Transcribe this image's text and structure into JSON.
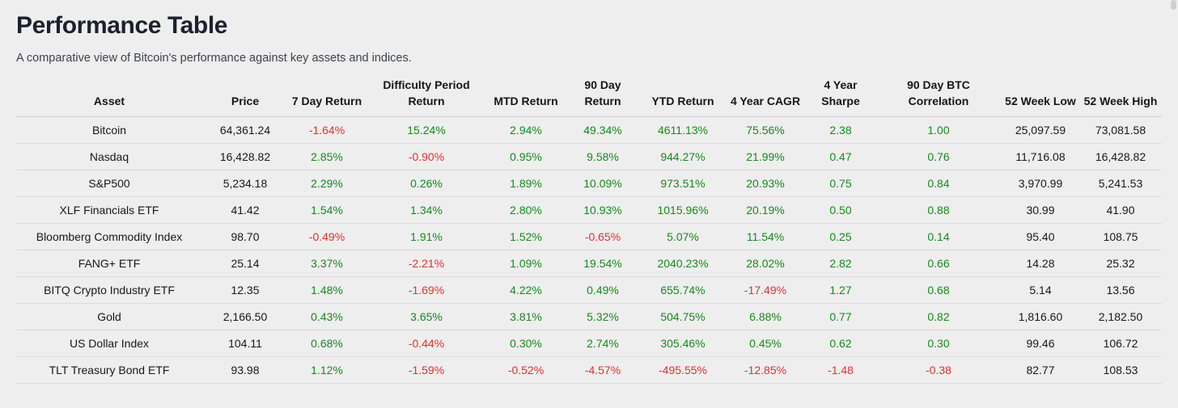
{
  "page": {
    "title": "Performance Table",
    "subtitle": "A comparative view of Bitcoin's performance against key assets and indices."
  },
  "colors": {
    "positive": "#178a1c",
    "negative": "#e03131",
    "neutral_text": "#17181c",
    "background": "#eeeeee",
    "title_text": "#1b212e"
  },
  "chart_data": {
    "type": "table",
    "title": "Performance Table",
    "subtitle": "A comparative view of Bitcoin's performance against key assets and indices.",
    "columns": [
      {
        "key": "asset",
        "label": "Asset"
      },
      {
        "key": "price",
        "label": "Price"
      },
      {
        "key": "d7",
        "label": "7 Day Return"
      },
      {
        "key": "dp",
        "label": "Difficulty Period\nReturn"
      },
      {
        "key": "mtd",
        "label": "MTD Return"
      },
      {
        "key": "d90",
        "label": "90 Day\nReturn"
      },
      {
        "key": "ytd",
        "label": "YTD Return"
      },
      {
        "key": "cagr",
        "label": "4 Year CAGR"
      },
      {
        "key": "sharpe",
        "label": "4 Year\nSharpe"
      },
      {
        "key": "corr",
        "label": "90 Day BTC\nCorrelation"
      },
      {
        "key": "low",
        "label": "52 Week Low"
      },
      {
        "key": "high",
        "label": "52 Week High"
      }
    ],
    "neutral_columns": [
      "asset",
      "price",
      "low",
      "high"
    ],
    "rows": [
      [
        "Bitcoin",
        "64,361.24",
        "-1.64%",
        "15.24%",
        "2.94%",
        "49.34%",
        "4611.13%",
        "75.56%",
        "2.38",
        "1.00",
        "25,097.59",
        "73,081.58"
      ],
      [
        "Nasdaq",
        "16,428.82",
        "2.85%",
        "-0.90%",
        "0.95%",
        "9.58%",
        "944.27%",
        "21.99%",
        "0.47",
        "0.76",
        "11,716.08",
        "16,428.82"
      ],
      [
        "S&P500",
        "5,234.18",
        "2.29%",
        "0.26%",
        "1.89%",
        "10.09%",
        "973.51%",
        "20.93%",
        "0.75",
        "0.84",
        "3,970.99",
        "5,241.53"
      ],
      [
        "XLF Financials ETF",
        "41.42",
        "1.54%",
        "1.34%",
        "2.80%",
        "10.93%",
        "1015.96%",
        "20.19%",
        "0.50",
        "0.88",
        "30.99",
        "41.90"
      ],
      [
        "Bloomberg Commodity Index",
        "98.70",
        "-0.49%",
        "1.91%",
        "1.52%",
        "-0.65%",
        "5.07%",
        "11.54%",
        "0.25",
        "0.14",
        "95.40",
        "108.75"
      ],
      [
        "FANG+ ETF",
        "25.14",
        "3.37%",
        "-2.21%",
        "1.09%",
        "19.54%",
        "2040.23%",
        "28.02%",
        "2.82",
        "0.66",
        "14.28",
        "25.32"
      ],
      [
        "BITQ Crypto Industry ETF",
        "12.35",
        "1.48%",
        "-1.69%",
        "4.22%",
        "0.49%",
        "655.74%",
        "-17.49%",
        "1.27",
        "0.68",
        "5.14",
        "13.56"
      ],
      [
        "Gold",
        "2,166.50",
        "0.43%",
        "3.65%",
        "3.81%",
        "5.32%",
        "504.75%",
        "6.88%",
        "0.77",
        "0.82",
        "1,816.60",
        "2,182.50"
      ],
      [
        "US Dollar Index",
        "104.11",
        "0.68%",
        "-0.44%",
        "0.30%",
        "2.74%",
        "305.46%",
        "0.45%",
        "0.62",
        "0.30",
        "99.46",
        "106.72"
      ],
      [
        "TLT Treasury Bond ETF",
        "93.98",
        "1.12%",
        "-1.59%",
        "-0.52%",
        "-4.57%",
        "-495.55%",
        "-12.85%",
        "-1.48",
        "-0.38",
        "82.77",
        "108.53"
      ]
    ]
  }
}
